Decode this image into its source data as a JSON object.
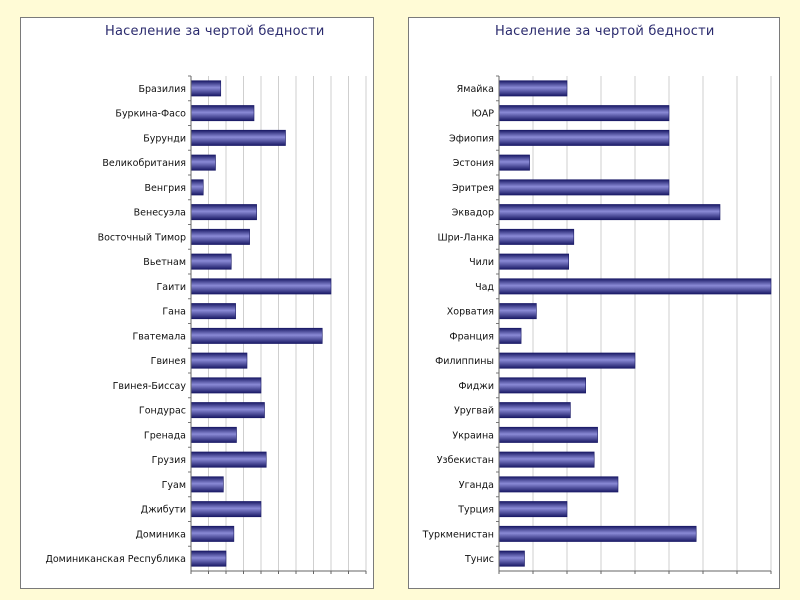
{
  "colors": {
    "background": "#fffbd6",
    "bar_dark": "#1a1a66",
    "bar_light": "#8a8ad6",
    "grid": "#cfcfcf"
  },
  "chart_data": [
    {
      "type": "bar",
      "orientation": "horizontal",
      "title": "Население за чертой бедности",
      "xlabel": "",
      "ylabel": "",
      "xlim": [
        0,
        100
      ],
      "grid": true,
      "categories": [
        "Бразилия",
        "Буркина-Фасо",
        "Бурунди",
        "Великобритания",
        "Венгрия",
        "Венесуэла",
        "Восточный Тимор",
        "Вьетнам",
        "Гаити",
        "Гана",
        "Гватемала",
        "Гвинея",
        "Гвинея-Биссау",
        "Гондурас",
        "Гренада",
        "Грузия",
        "Гуам",
        "Джибути",
        "Доминика",
        "Доминиканская Республика"
      ],
      "values": [
        17,
        36,
        54,
        14,
        7,
        37.5,
        33.5,
        23,
        80,
        25.5,
        75,
        32,
        40,
        42,
        26,
        43,
        18.5,
        40,
        24.5,
        20
      ]
    },
    {
      "type": "bar",
      "orientation": "horizontal",
      "title": "Население за чертой бедности",
      "xlabel": "",
      "ylabel": "",
      "xlim": [
        0,
        80
      ],
      "grid": true,
      "categories": [
        "Ямайка",
        "ЮАР",
        "Эфиопия",
        "Эстония",
        "Эритрея",
        "Эквадор",
        "Шри-Ланка",
        "Чили",
        "Чад",
        "Хорватия",
        "Франция",
        "Филиппины",
        "Фиджи",
        "Уругвай",
        "Украина",
        "Узбекистан",
        "Уганда",
        "Турция",
        "Туркменистан",
        "Тунис"
      ],
      "values": [
        20,
        50,
        50,
        9,
        50,
        65,
        22,
        20.5,
        80,
        11,
        6.5,
        40,
        25.5,
        21,
        29,
        28,
        35,
        20,
        58,
        7.5
      ]
    }
  ]
}
